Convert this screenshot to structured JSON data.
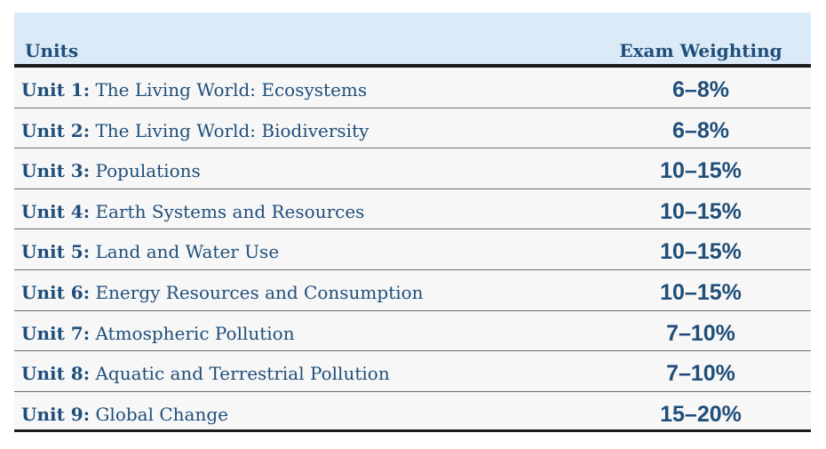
{
  "table": {
    "headers": {
      "units": "Units",
      "weighting": "Exam Weighting"
    },
    "rows": [
      {
        "unit": "Unit 1:",
        "name": "The Living World: Ecosystems",
        "weighting": "6–8%"
      },
      {
        "unit": "Unit 2:",
        "name": "The Living World: Biodiversity",
        "weighting": "6–8%"
      },
      {
        "unit": "Unit 3:",
        "name": "Populations",
        "weighting": "10–15%"
      },
      {
        "unit": "Unit 4:",
        "name": "Earth Systems and Resources",
        "weighting": "10–15%"
      },
      {
        "unit": "Unit 5:",
        "name": "Land and Water Use",
        "weighting": "10–15%"
      },
      {
        "unit": "Unit 6:",
        "name": "Energy Resources and Consumption",
        "weighting": "10–15%"
      },
      {
        "unit": "Unit 7:",
        "name": "Atmospheric Pollution",
        "weighting": "7–10%"
      },
      {
        "unit": "Unit 8:",
        "name": "Aquatic and Terrestrial Pollution",
        "weighting": "7–10%"
      },
      {
        "unit": "Unit 9:",
        "name": "Global Change",
        "weighting": "15–20%"
      }
    ]
  },
  "colors": {
    "header_bg": "#dbeaf7",
    "row_bg": "#f7f7f7",
    "text": "#1f4e7a",
    "rule": "#1c1c1c"
  }
}
